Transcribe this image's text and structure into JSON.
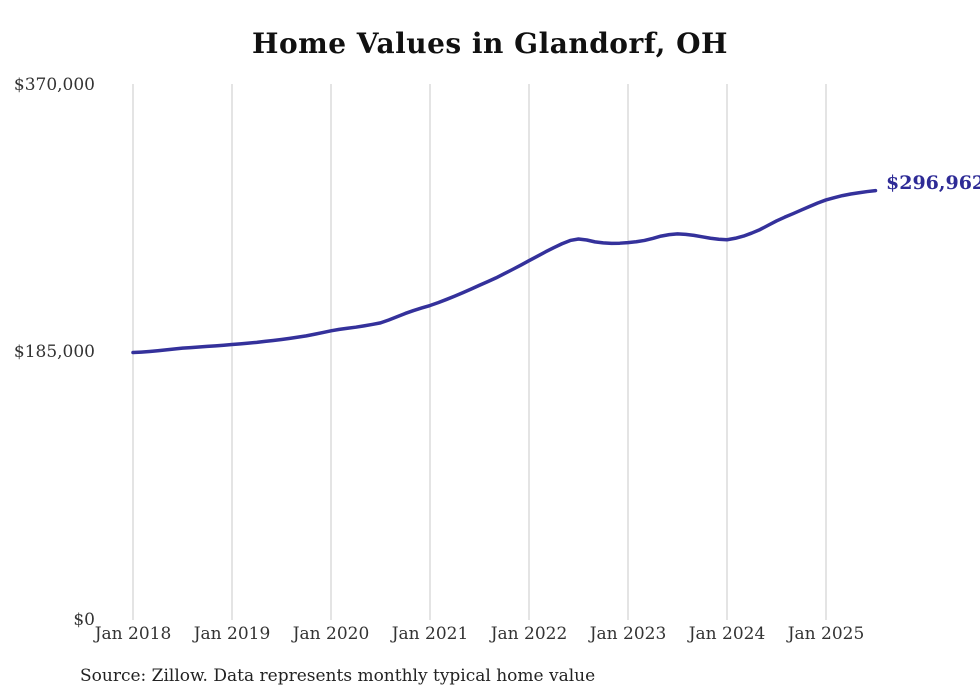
{
  "chart_data": {
    "type": "line",
    "title": "Home Values in Glandorf, OH",
    "xlabel": "",
    "ylabel": "",
    "ylim": [
      0,
      370000
    ],
    "grid": "vertical-only",
    "legend_position": "none",
    "line_color": "#34319b",
    "gridline_color": "#c8c8c8",
    "end_label": "$296,962",
    "end_value": 296962,
    "x_start_month": "Jan 2018",
    "x_end_month": "Jul 2025",
    "x_tick_labels": [
      "Jan 2018",
      "Jan 2019",
      "Jan 2020",
      "Jan 2021",
      "Jan 2022",
      "Jan 2023",
      "Jan 2024",
      "Jan 2025"
    ],
    "y_tick_labels": [
      "$370,000",
      "$185,000",
      "$0"
    ],
    "y_tick_values": [
      370000,
      185000,
      0
    ],
    "values": [
      185000,
      185300,
      185700,
      186200,
      186800,
      187400,
      188000,
      188400,
      188800,
      189200,
      189600,
      190000,
      190500,
      191000,
      191500,
      192000,
      192700,
      193300,
      194000,
      194800,
      195600,
      196500,
      197600,
      198800,
      200000,
      201000,
      201800,
      202500,
      203400,
      204400,
      205500,
      207500,
      209700,
      212000,
      214000,
      215800,
      217500,
      219500,
      221700,
      224000,
      226400,
      228900,
      231500,
      234000,
      236600,
      239500,
      242400,
      245400,
      248500,
      251500,
      254600,
      257500,
      260200,
      262500,
      263500,
      262800,
      261500,
      260800,
      260500,
      260600,
      261000,
      261600,
      262500,
      263900,
      265500,
      266500,
      267000,
      266700,
      266000,
      265000,
      264000,
      263300,
      263000,
      264000,
      265500,
      267600,
      270000,
      273000,
      276000,
      278600,
      281000,
      283500,
      286000,
      288400,
      290500,
      292100,
      293500,
      294600,
      295500,
      296300,
      296962
    ]
  },
  "source_note": "Source: Zillow. Data represents monthly typical home value"
}
